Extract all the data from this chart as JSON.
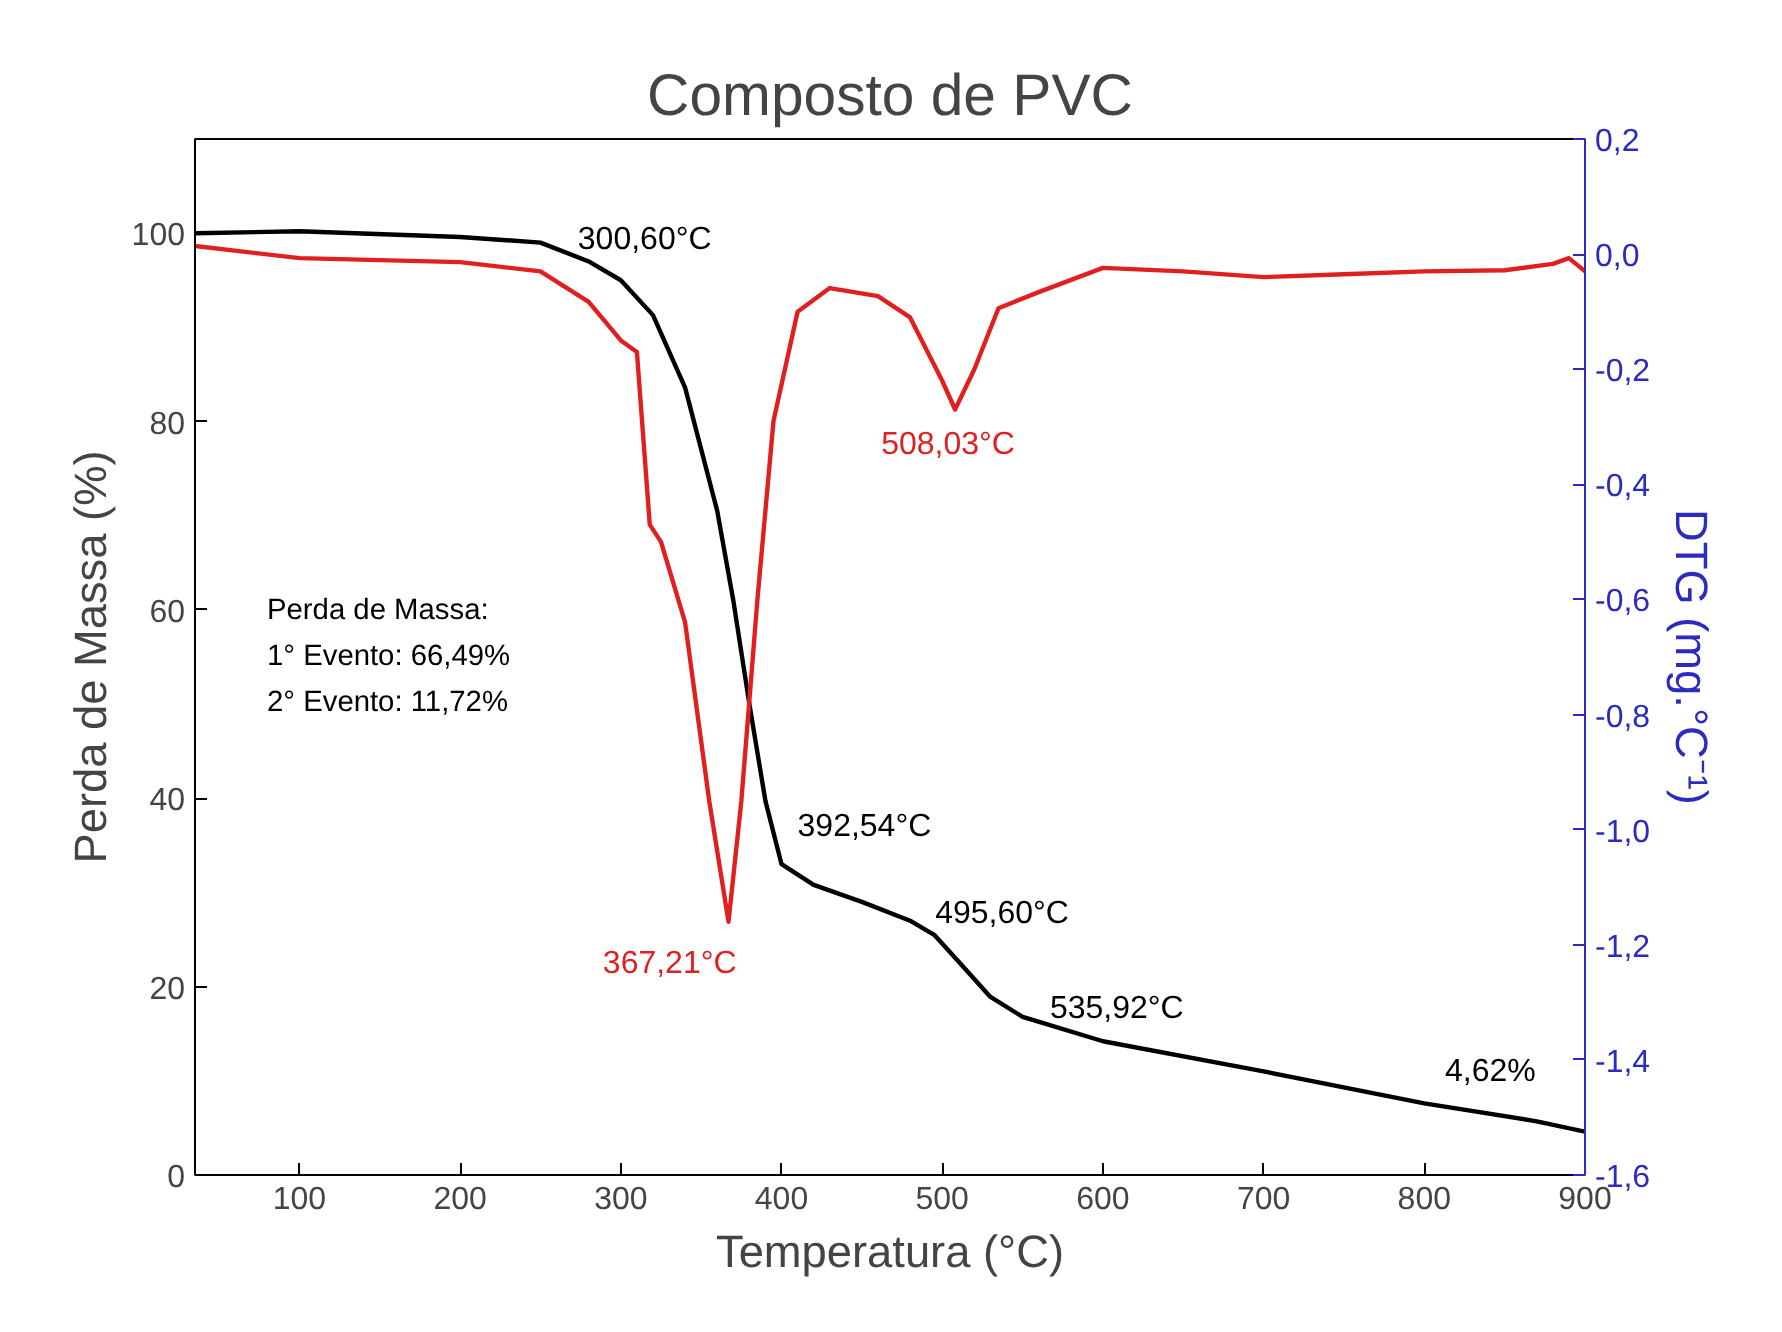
{
  "chart_data": {
    "type": "line",
    "title": "Composto de PVC",
    "xlabel": "Temperatura (°C)",
    "ylabel": "Perda de Massa (%)",
    "y2label": "DTG (mg.°C⁻¹)",
    "xlim": [
      35,
      900
    ],
    "xticks": [
      100,
      200,
      300,
      400,
      500,
      600,
      700,
      800,
      900
    ],
    "ylim": [
      0,
      110
    ],
    "yticks": [
      0,
      20,
      40,
      60,
      80,
      100
    ],
    "y2lim": [
      -1.6,
      0.2
    ],
    "y2ticks": [
      {
        "value": -1.6,
        "label": "-1,6"
      },
      {
        "value": -1.4,
        "label": "-1,4"
      },
      {
        "value": -1.2,
        "label": "-1,2"
      },
      {
        "value": -1.0,
        "label": "-1,0"
      },
      {
        "value": -0.8,
        "label": "-0,8"
      },
      {
        "value": -0.6,
        "label": "-0,6"
      },
      {
        "value": -0.4,
        "label": "-0,4"
      },
      {
        "value": -0.2,
        "label": "-0,2"
      },
      {
        "value": 0.0,
        "label": "0,0"
      },
      {
        "value": 0.2,
        "label": "0,2"
      }
    ],
    "grid": false,
    "line_style": "solid",
    "series": [
      {
        "color": "#000000",
        "x": [
          35,
          100,
          200,
          250,
          280,
          300,
          320,
          340,
          360,
          370,
          380,
          390,
          400,
          420,
          450,
          480,
          495,
          510,
          530,
          550,
          600,
          700,
          800,
          870,
          900
        ],
        "values": [
          100,
          100.2,
          99.6,
          99,
          97,
          95,
          91.3,
          83.6,
          70.5,
          61,
          50,
          39.7,
          33,
          30.8,
          29,
          27,
          25.5,
          22.7,
          18.9,
          16.8,
          14.2,
          11,
          7.6,
          5.7,
          4.6
        ]
      },
      {
        "color": "#e02020",
        "axis": "y2",
        "x": [
          35,
          100,
          200,
          250,
          280,
          300,
          310,
          318,
          325,
          340,
          355,
          367,
          375,
          385,
          395,
          410,
          430,
          460,
          480,
          500,
          508,
          520,
          535,
          560,
          600,
          650,
          700,
          750,
          800,
          850,
          880,
          890,
          900
        ],
        "values": [
          0.014,
          -0.007,
          -0.014,
          -0.03,
          -0.083,
          -0.15,
          -0.17,
          -0.47,
          -0.5,
          -0.64,
          -0.95,
          -1.16,
          -0.95,
          -0.6,
          -0.29,
          -0.1,
          -0.059,
          -0.073,
          -0.11,
          -0.22,
          -0.27,
          -0.2,
          -0.094,
          -0.066,
          -0.024,
          -0.03,
          -0.04,
          -0.035,
          -0.03,
          -0.028,
          -0.017,
          -0.007,
          -0.03
        ]
      }
    ],
    "annotations": [
      {
        "text": "300,60°C",
        "x": 300.6,
        "y": 95
      },
      {
        "text": "392,54°C",
        "x": 392.54,
        "y": 38
      },
      {
        "text": "495,60°C",
        "x": 495.6,
        "y": 25.4
      },
      {
        "text": "535,92°C",
        "x": 535.92,
        "y": 18.3
      },
      {
        "text": "4,62%",
        "x": 900,
        "y": 4.6
      },
      {
        "text": "508,03°C",
        "x": 508.03,
        "y": 81.3
      },
      {
        "text": "367,21°C",
        "x": 367.21,
        "y": 26.9
      },
      "Perda de Massa:",
      "1° Evento: 66,49%",
      "2° Evento: 11,72%"
    ]
  }
}
